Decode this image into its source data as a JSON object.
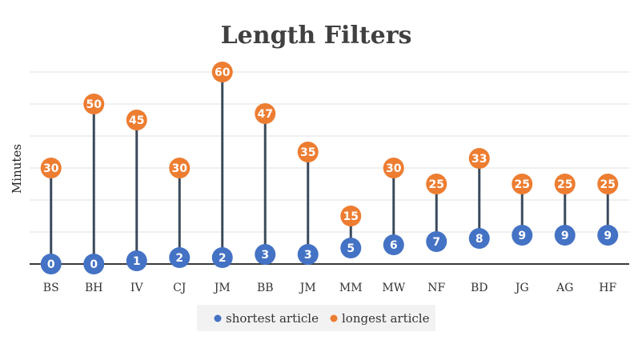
{
  "chart_data": {
    "type": "scatter",
    "title": "Length Filters",
    "ylabel": "Minutes",
    "xlabel": "",
    "categories": [
      "BS",
      "BH",
      "IV",
      "CJ",
      "JM",
      "BB",
      "JM",
      "MM",
      "MW",
      "NF",
      "BD",
      "JG",
      "AG",
      "HF"
    ],
    "series": [
      {
        "name": "shortest article",
        "color": "#4472c4",
        "values": [
          0,
          0,
          1,
          2,
          2,
          3,
          3,
          5,
          6,
          7,
          8,
          9,
          9,
          9
        ]
      },
      {
        "name": "longest article",
        "color": "#ed7d31",
        "values": [
          30,
          50,
          45,
          30,
          60,
          47,
          35,
          15,
          30,
          25,
          33,
          25,
          25,
          25
        ]
      }
    ],
    "ylim": [
      0,
      60
    ],
    "grid": true,
    "legend_position": "bottom",
    "connector_color": "#3b4a5c",
    "grid_color": "#e2e2e2"
  }
}
